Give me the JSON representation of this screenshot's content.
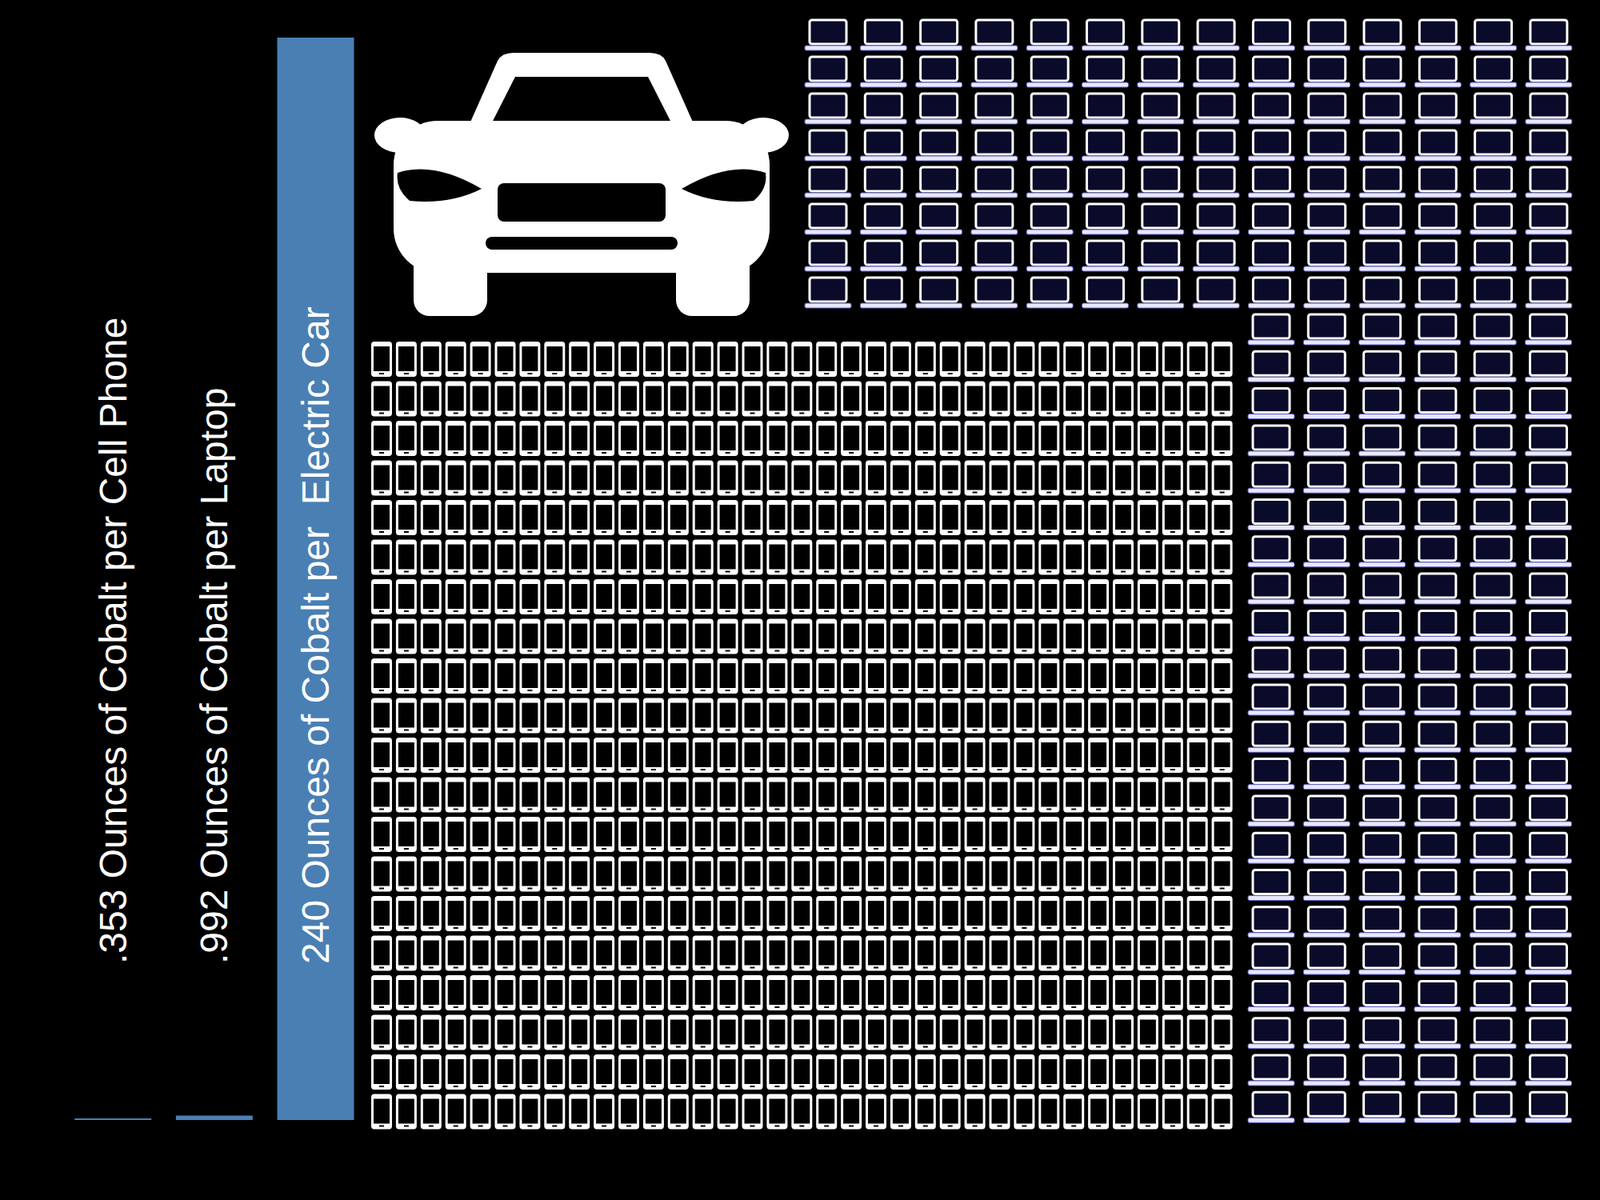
{
  "chart_data": {
    "type": "bar",
    "categories": [
      ".353 Ounces of Cobalt per Cell Phone",
      ".992 Ounces of Cobalt per Laptop",
      "240 Ounces of Cobalt per  Electric Car"
    ],
    "values": [
      0.353,
      0.992,
      240
    ],
    "color": "#4a7fb4",
    "ylim": [
      0,
      240
    ],
    "tick_labels": false,
    "grid": false
  }
}
